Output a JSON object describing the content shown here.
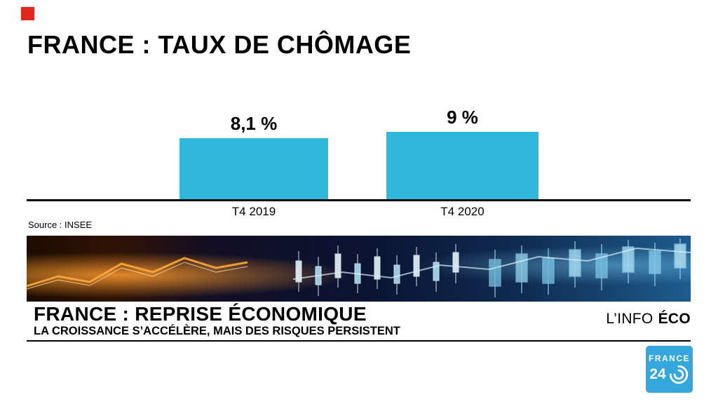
{
  "brand": {
    "red_square_color": "#e2281e",
    "logo": {
      "line1": "FRANCE",
      "line2": "24",
      "bg_color": "#35a7dc"
    }
  },
  "chart": {
    "title": "FRANCE : TAUX DE CHÔMAGE",
    "source": "Source : INSEE",
    "bar_color": "#2fb8d9"
  },
  "chart_data": {
    "type": "bar",
    "title": "FRANCE : TAUX DE CHÔMAGE",
    "categories": [
      "T4 2019",
      "T4 2020"
    ],
    "values": [
      8.1,
      9
    ],
    "value_labels": [
      "8,1 %",
      "9 %"
    ],
    "xlabel": "",
    "ylabel": "",
    "ylim": [
      0,
      10
    ],
    "grid": false,
    "legend": false,
    "source": "Source : INSEE"
  },
  "lower_third": {
    "headline": "FRANCE : REPRISE ÉCONOMIQUE",
    "subheadline": "LA CROISSANCE S’ACCÉLÈRE, MAIS DES RISQUES PERSISTENT",
    "program": {
      "prefix": "L’INFO",
      "suffix": "ÉCO"
    }
  }
}
